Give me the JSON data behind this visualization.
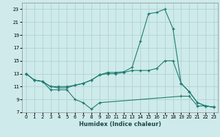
{
  "xlabel": "Humidex (Indice chaleur)",
  "bg_color": "#ceeaea",
  "grid_color": "#aacece",
  "line_color": "#1a7a6e",
  "xlim": [
    -0.5,
    23.5
  ],
  "ylim": [
    7,
    24
  ],
  "xticks": [
    0,
    1,
    2,
    3,
    4,
    5,
    6,
    7,
    8,
    9,
    10,
    11,
    12,
    13,
    14,
    15,
    16,
    17,
    18,
    19,
    20,
    21,
    22,
    23
  ],
  "yticks": [
    7,
    9,
    11,
    13,
    15,
    17,
    19,
    21,
    23
  ],
  "series": [
    {
      "x": [
        0,
        1,
        2,
        3,
        4,
        5,
        6,
        7,
        8,
        9,
        10,
        11,
        12,
        13,
        14,
        15,
        16,
        17,
        18,
        19,
        20,
        21,
        22,
        23
      ],
      "y": [
        13,
        12,
        11.8,
        11,
        10.8,
        10.8,
        11.2,
        11.5,
        12,
        12.8,
        13.2,
        13.2,
        13.3,
        14.0,
        18.0,
        22.3,
        22.5,
        23,
        20,
        11.5,
        10.2,
        8.5,
        8.0,
        7.8
      ]
    },
    {
      "x": [
        0,
        1,
        2,
        3,
        4,
        5,
        6,
        7,
        8,
        9,
        10,
        11,
        12,
        13,
        14,
        15,
        16,
        17,
        18,
        19,
        20,
        21,
        22,
        23
      ],
      "y": [
        13,
        12,
        11.8,
        11,
        11,
        11,
        11.2,
        11.5,
        12,
        12.8,
        13.0,
        13.0,
        13.2,
        13.5,
        13.5,
        13.5,
        13.8,
        15.0,
        15.0,
        11.5,
        10.2,
        8.5,
        8.0,
        7.8
      ]
    },
    {
      "x": [
        0,
        1,
        2,
        3,
        4,
        5,
        6,
        7,
        8,
        9,
        19,
        20,
        21,
        22,
        23
      ],
      "y": [
        13,
        12,
        11.8,
        10.5,
        10.5,
        10.5,
        9.0,
        8.5,
        7.5,
        8.5,
        9.5,
        9.5,
        8.0,
        8.0,
        7.8
      ]
    }
  ]
}
